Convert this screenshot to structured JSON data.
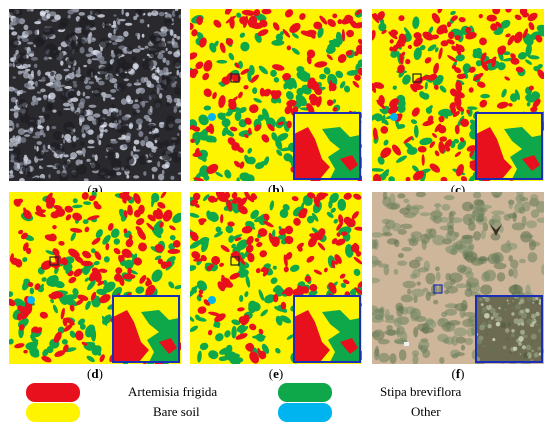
{
  "panels": [
    {
      "id": "a",
      "caption_letter": "a",
      "kind": "raw"
    },
    {
      "id": "b",
      "caption_letter": "b",
      "kind": "class"
    },
    {
      "id": "c",
      "caption_letter": "c",
      "kind": "class"
    },
    {
      "id": "d",
      "caption_letter": "d",
      "kind": "class"
    },
    {
      "id": "e",
      "caption_letter": "e",
      "kind": "class"
    },
    {
      "id": "f",
      "caption_letter": "f",
      "kind": "photo"
    }
  ],
  "legend": [
    {
      "label": "Artemisia frigida",
      "color": "#e8101c"
    },
    {
      "label": "Bare soil",
      "color": "#fff400"
    },
    {
      "label": "Stipa breviflora",
      "color": "#0ea84a"
    },
    {
      "label": "Other",
      "color": "#00b5ef"
    }
  ],
  "colors": {
    "inset_border": "#1a2fb5",
    "marker_box": "#222222",
    "photo_ground": "#cdb69a",
    "raw_dark": "#2a2a2e"
  }
}
